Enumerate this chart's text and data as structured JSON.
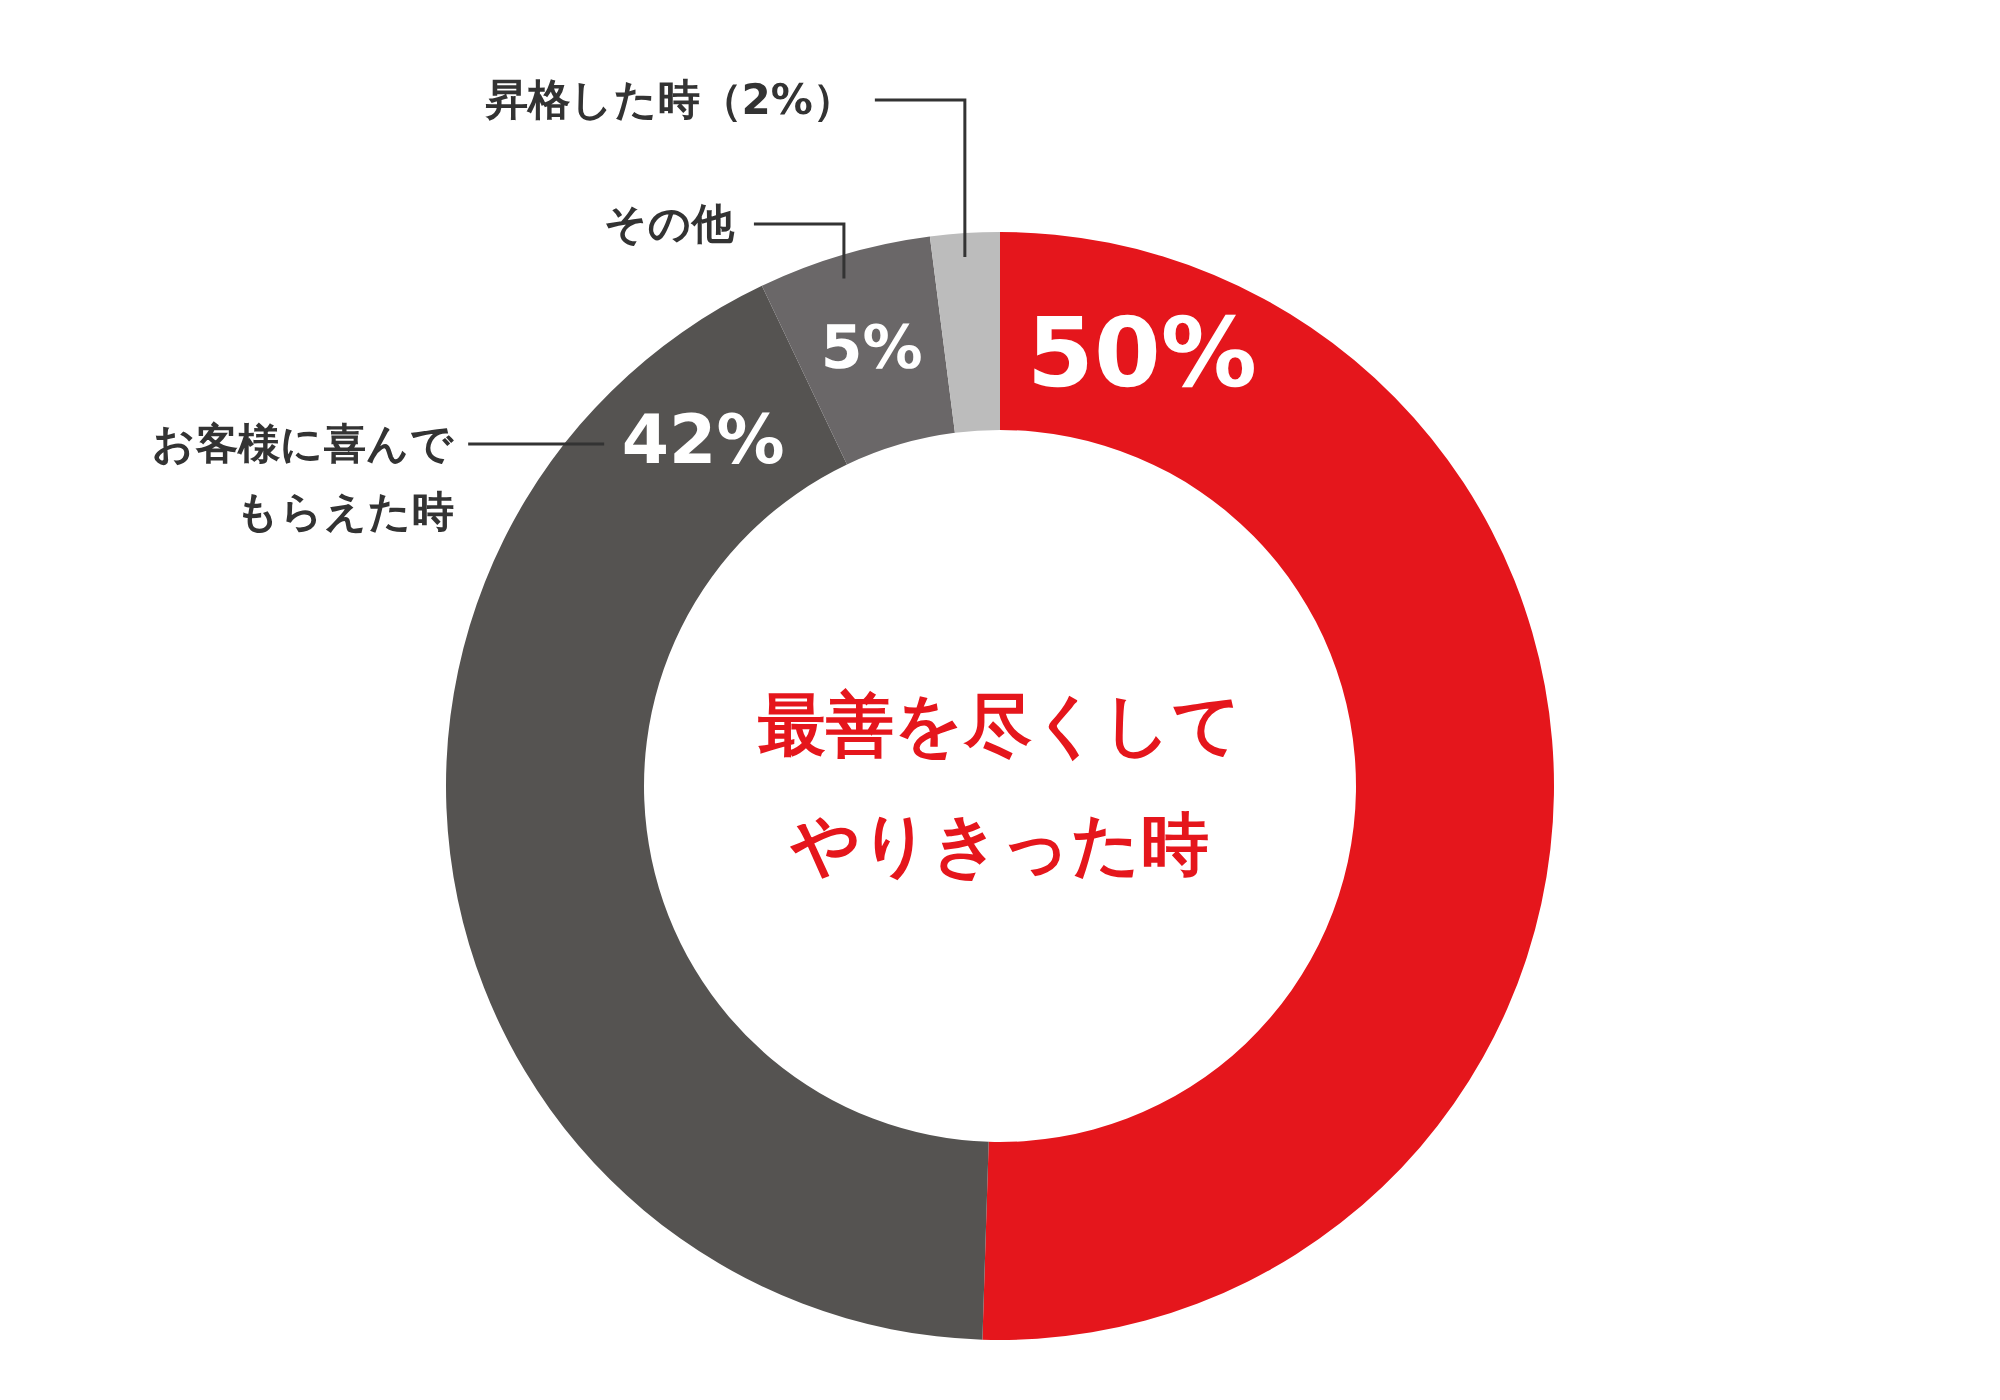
{
  "chart_data": {
    "type": "donut",
    "categories": [
      "最善を尽くしてやりきった時",
      "お客様に喜んでもらえた時",
      "その他",
      "昇格した時（2%）"
    ],
    "values": [
      50,
      42,
      5,
      2
    ],
    "colors": [
      "#e5161c",
      "#555351",
      "#6a6768",
      "#bcbcbc"
    ],
    "value_labels": [
      "50%",
      "42%",
      "5%",
      null
    ],
    "legend": false
  }
}
